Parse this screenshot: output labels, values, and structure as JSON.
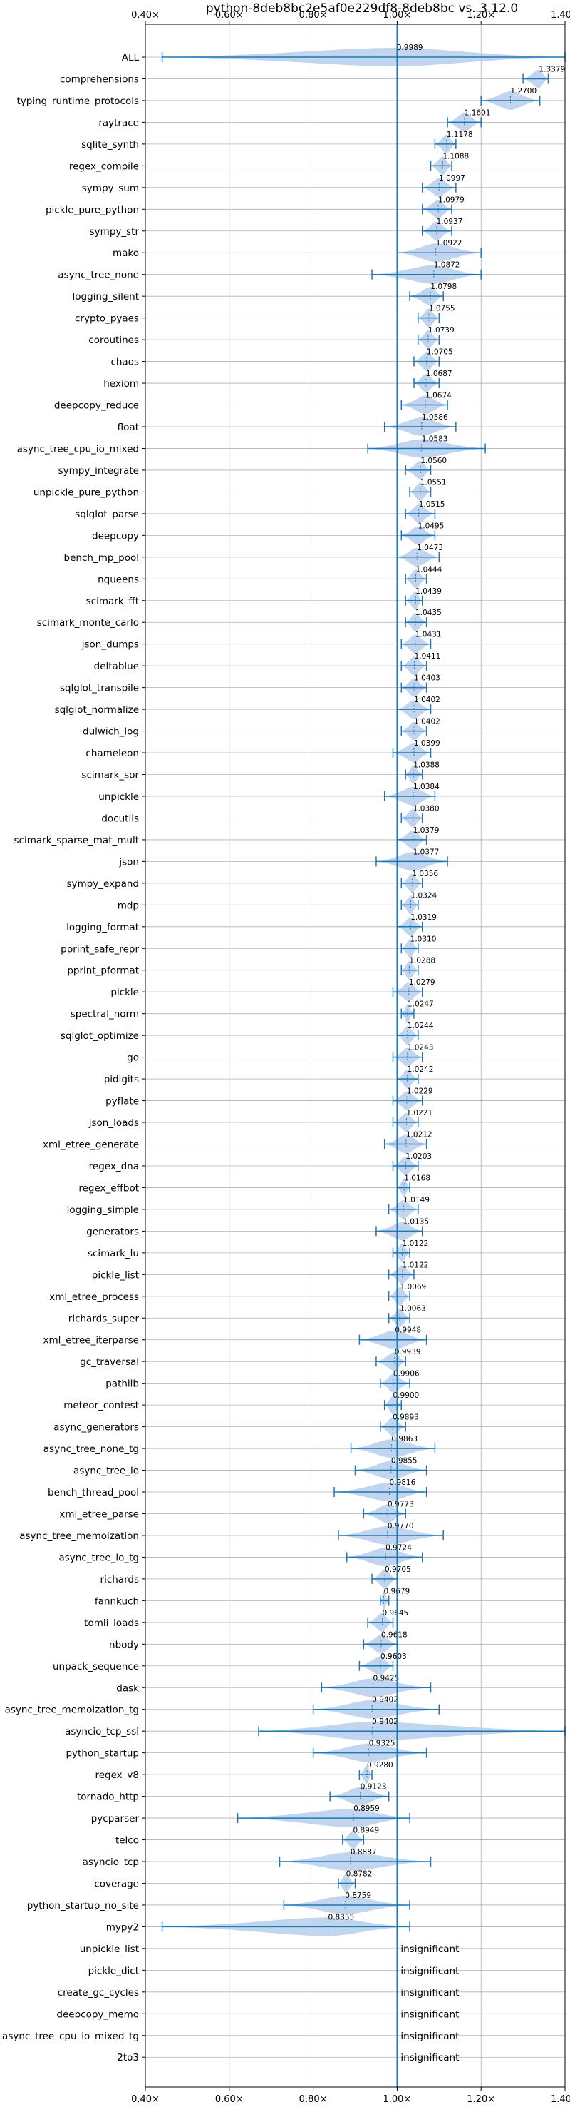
{
  "chart_data": {
    "type": "violin",
    "title": "python-8deb8bc2e5af0e229df8-8deb8bc vs. 3.12.0",
    "xlim": [
      0.4,
      1.4
    ],
    "xticks": [
      0.4,
      0.6,
      0.8,
      1.0,
      1.2,
      1.4
    ],
    "xtick_labels": [
      "0.40×",
      "0.60×",
      "0.80×",
      "1.00×",
      "1.20×",
      "1.40×"
    ],
    "reference_line": 1.0,
    "grid": true,
    "series_color": "#1f77b4",
    "violin_color": "#aec7e8",
    "insignificant_label": "insignificant",
    "benchmarks": [
      {
        "name": "ALL",
        "value": 0.9989,
        "label": "0.9989",
        "min": 0.44,
        "max": 1.4
      },
      {
        "name": "comprehensions",
        "value": 1.3379,
        "label": "1.3379",
        "min": 1.3,
        "max": 1.36
      },
      {
        "name": "typing_runtime_protocols",
        "value": 1.27,
        "label": "1.2700",
        "min": 1.2,
        "max": 1.34
      },
      {
        "name": "raytrace",
        "value": 1.1601,
        "label": "1.1601",
        "min": 1.12,
        "max": 1.2
      },
      {
        "name": "sqlite_synth",
        "value": 1.1178,
        "label": "1.1178",
        "min": 1.09,
        "max": 1.14
      },
      {
        "name": "regex_compile",
        "value": 1.1088,
        "label": "1.1088",
        "min": 1.08,
        "max": 1.13
      },
      {
        "name": "sympy_sum",
        "value": 1.0997,
        "label": "1.0997",
        "min": 1.06,
        "max": 1.14
      },
      {
        "name": "pickle_pure_python",
        "value": 1.0979,
        "label": "1.0979",
        "min": 1.06,
        "max": 1.13
      },
      {
        "name": "sympy_str",
        "value": 1.0937,
        "label": "1.0937",
        "min": 1.06,
        "max": 1.13
      },
      {
        "name": "mako",
        "value": 1.0922,
        "label": "1.0922",
        "min": 1.0,
        "max": 1.2
      },
      {
        "name": "async_tree_none",
        "value": 1.0872,
        "label": "1.0872",
        "min": 0.94,
        "max": 1.2
      },
      {
        "name": "logging_silent",
        "value": 1.0798,
        "label": "1.0798",
        "min": 1.03,
        "max": 1.11
      },
      {
        "name": "crypto_pyaes",
        "value": 1.0755,
        "label": "1.0755",
        "min": 1.05,
        "max": 1.1
      },
      {
        "name": "coroutines",
        "value": 1.0739,
        "label": "1.0739",
        "min": 1.05,
        "max": 1.1
      },
      {
        "name": "chaos",
        "value": 1.0705,
        "label": "1.0705",
        "min": 1.04,
        "max": 1.1
      },
      {
        "name": "hexiom",
        "value": 1.0687,
        "label": "1.0687",
        "min": 1.04,
        "max": 1.1
      },
      {
        "name": "deepcopy_reduce",
        "value": 1.0674,
        "label": "1.0674",
        "min": 1.01,
        "max": 1.12
      },
      {
        "name": "float",
        "value": 1.0586,
        "label": "1.0586",
        "min": 0.97,
        "max": 1.14
      },
      {
        "name": "async_tree_cpu_io_mixed",
        "value": 1.0583,
        "label": "1.0583",
        "min": 0.93,
        "max": 1.21
      },
      {
        "name": "sympy_integrate",
        "value": 1.056,
        "label": "1.0560",
        "min": 1.02,
        "max": 1.08
      },
      {
        "name": "unpickle_pure_python",
        "value": 1.0551,
        "label": "1.0551",
        "min": 1.03,
        "max": 1.08
      },
      {
        "name": "sqlglot_parse",
        "value": 1.0515,
        "label": "1.0515",
        "min": 1.02,
        "max": 1.09
      },
      {
        "name": "deepcopy",
        "value": 1.0495,
        "label": "1.0495",
        "min": 1.01,
        "max": 1.09
      },
      {
        "name": "bench_mp_pool",
        "value": 1.0473,
        "label": "1.0473",
        "min": 1.0,
        "max": 1.1
      },
      {
        "name": "nqueens",
        "value": 1.0444,
        "label": "1.0444",
        "min": 1.02,
        "max": 1.07
      },
      {
        "name": "scimark_fft",
        "value": 1.0439,
        "label": "1.0439",
        "min": 1.02,
        "max": 1.06
      },
      {
        "name": "scimark_monte_carlo",
        "value": 1.0435,
        "label": "1.0435",
        "min": 1.02,
        "max": 1.07
      },
      {
        "name": "json_dumps",
        "value": 1.0431,
        "label": "1.0431",
        "min": 1.01,
        "max": 1.08
      },
      {
        "name": "deltablue",
        "value": 1.0411,
        "label": "1.0411",
        "min": 1.01,
        "max": 1.07
      },
      {
        "name": "sqlglot_transpile",
        "value": 1.0403,
        "label": "1.0403",
        "min": 1.01,
        "max": 1.07
      },
      {
        "name": "sqlglot_normalize",
        "value": 1.0402,
        "label": "1.0402",
        "min": 1.0,
        "max": 1.08
      },
      {
        "name": "dulwich_log",
        "value": 1.0402,
        "label": "1.0402",
        "min": 1.01,
        "max": 1.07
      },
      {
        "name": "chameleon",
        "value": 1.0399,
        "label": "1.0399",
        "min": 0.99,
        "max": 1.08
      },
      {
        "name": "scimark_sor",
        "value": 1.0388,
        "label": "1.0388",
        "min": 1.02,
        "max": 1.06
      },
      {
        "name": "unpickle",
        "value": 1.0384,
        "label": "1.0384",
        "min": 0.97,
        "max": 1.09
      },
      {
        "name": "docutils",
        "value": 1.038,
        "label": "1.0380",
        "min": 1.01,
        "max": 1.06
      },
      {
        "name": "scimark_sparse_mat_mult",
        "value": 1.0379,
        "label": "1.0379",
        "min": 1.0,
        "max": 1.07
      },
      {
        "name": "json",
        "value": 1.0377,
        "label": "1.0377",
        "min": 0.95,
        "max": 1.12
      },
      {
        "name": "sympy_expand",
        "value": 1.0356,
        "label": "1.0356",
        "min": 1.01,
        "max": 1.06
      },
      {
        "name": "mdp",
        "value": 1.0324,
        "label": "1.0324",
        "min": 1.01,
        "max": 1.05
      },
      {
        "name": "logging_format",
        "value": 1.0319,
        "label": "1.0319",
        "min": 1.0,
        "max": 1.06
      },
      {
        "name": "pprint_safe_repr",
        "value": 1.031,
        "label": "1.0310",
        "min": 1.01,
        "max": 1.05
      },
      {
        "name": "pprint_pformat",
        "value": 1.0288,
        "label": "1.0288",
        "min": 1.01,
        "max": 1.05
      },
      {
        "name": "pickle",
        "value": 1.0279,
        "label": "1.0279",
        "min": 0.99,
        "max": 1.06
      },
      {
        "name": "spectral_norm",
        "value": 1.0247,
        "label": "1.0247",
        "min": 1.01,
        "max": 1.04
      },
      {
        "name": "sqlglot_optimize",
        "value": 1.0244,
        "label": "1.0244",
        "min": 1.0,
        "max": 1.05
      },
      {
        "name": "go",
        "value": 1.0243,
        "label": "1.0243",
        "min": 0.99,
        "max": 1.06
      },
      {
        "name": "pidigits",
        "value": 1.0242,
        "label": "1.0242",
        "min": 1.0,
        "max": 1.05
      },
      {
        "name": "pyflate",
        "value": 1.0229,
        "label": "1.0229",
        "min": 0.99,
        "max": 1.06
      },
      {
        "name": "json_loads",
        "value": 1.0221,
        "label": "1.0221",
        "min": 0.99,
        "max": 1.05
      },
      {
        "name": "xml_etree_generate",
        "value": 1.0212,
        "label": "1.0212",
        "min": 0.97,
        "max": 1.07
      },
      {
        "name": "regex_dna",
        "value": 1.0203,
        "label": "1.0203",
        "min": 0.99,
        "max": 1.05
      },
      {
        "name": "regex_effbot",
        "value": 1.0168,
        "label": "1.0168",
        "min": 1.0,
        "max": 1.03
      },
      {
        "name": "logging_simple",
        "value": 1.0149,
        "label": "1.0149",
        "min": 0.98,
        "max": 1.05
      },
      {
        "name": "generators",
        "value": 1.0135,
        "label": "1.0135",
        "min": 0.95,
        "max": 1.06
      },
      {
        "name": "scimark_lu",
        "value": 1.0122,
        "label": "1.0122",
        "min": 0.99,
        "max": 1.03
      },
      {
        "name": "pickle_list",
        "value": 1.0122,
        "label": "1.0122",
        "min": 0.98,
        "max": 1.04
      },
      {
        "name": "xml_etree_process",
        "value": 1.0069,
        "label": "1.0069",
        "min": 0.98,
        "max": 1.03
      },
      {
        "name": "richards_super",
        "value": 1.0063,
        "label": "1.0063",
        "min": 0.98,
        "max": 1.03
      },
      {
        "name": "xml_etree_iterparse",
        "value": 0.9948,
        "label": "0.9948",
        "min": 0.91,
        "max": 1.07
      },
      {
        "name": "gc_traversal",
        "value": 0.9939,
        "label": "0.9939",
        "min": 0.95,
        "max": 1.02
      },
      {
        "name": "pathlib",
        "value": 0.9906,
        "label": "0.9906",
        "min": 0.96,
        "max": 1.03
      },
      {
        "name": "meteor_contest",
        "value": 0.99,
        "label": "0.9900",
        "min": 0.97,
        "max": 1.01
      },
      {
        "name": "async_generators",
        "value": 0.9893,
        "label": "0.9893",
        "min": 0.96,
        "max": 1.02
      },
      {
        "name": "async_tree_none_tg",
        "value": 0.9863,
        "label": "0.9863",
        "min": 0.89,
        "max": 1.09
      },
      {
        "name": "async_tree_io",
        "value": 0.9855,
        "label": "0.9855",
        "min": 0.9,
        "max": 1.07
      },
      {
        "name": "bench_thread_pool",
        "value": 0.9816,
        "label": "0.9816",
        "min": 0.85,
        "max": 1.07
      },
      {
        "name": "xml_etree_parse",
        "value": 0.9773,
        "label": "0.9773",
        "min": 0.92,
        "max": 1.02
      },
      {
        "name": "async_tree_memoization",
        "value": 0.977,
        "label": "0.9770",
        "min": 0.86,
        "max": 1.11
      },
      {
        "name": "async_tree_io_tg",
        "value": 0.9724,
        "label": "0.9724",
        "min": 0.88,
        "max": 1.06
      },
      {
        "name": "richards",
        "value": 0.9705,
        "label": "0.9705",
        "min": 0.94,
        "max": 1.0
      },
      {
        "name": "fannkuch",
        "value": 0.9679,
        "label": "0.9679",
        "min": 0.96,
        "max": 0.98
      },
      {
        "name": "tomli_loads",
        "value": 0.9645,
        "label": "0.9645",
        "min": 0.93,
        "max": 0.99
      },
      {
        "name": "nbody",
        "value": 0.9618,
        "label": "0.9618",
        "min": 0.92,
        "max": 1.0
      },
      {
        "name": "unpack_sequence",
        "value": 0.9603,
        "label": "0.9603",
        "min": 0.91,
        "max": 0.99
      },
      {
        "name": "dask",
        "value": 0.9425,
        "label": "0.9425",
        "min": 0.82,
        "max": 1.08
      },
      {
        "name": "async_tree_memoization_tg",
        "value": 0.9402,
        "label": "0.9402",
        "min": 0.8,
        "max": 1.1
      },
      {
        "name": "asyncio_tcp_ssl",
        "value": 0.9402,
        "label": "0.9402",
        "min": 0.67,
        "max": 1.4
      },
      {
        "name": "python_startup",
        "value": 0.9325,
        "label": "0.9325",
        "min": 0.8,
        "max": 1.07
      },
      {
        "name": "regex_v8",
        "value": 0.928,
        "label": "0.9280",
        "min": 0.91,
        "max": 0.94
      },
      {
        "name": "tornado_http",
        "value": 0.9123,
        "label": "0.9123",
        "min": 0.84,
        "max": 0.98
      },
      {
        "name": "pycparser",
        "value": 0.8959,
        "label": "0.8959",
        "min": 0.62,
        "max": 1.03
      },
      {
        "name": "telco",
        "value": 0.8949,
        "label": "0.8949",
        "min": 0.87,
        "max": 0.92
      },
      {
        "name": "asyncio_tcp",
        "value": 0.8887,
        "label": "0.8887",
        "min": 0.72,
        "max": 1.08
      },
      {
        "name": "coverage",
        "value": 0.8782,
        "label": "0.8782",
        "min": 0.86,
        "max": 0.9
      },
      {
        "name": "python_startup_no_site",
        "value": 0.8759,
        "label": "0.8759",
        "min": 0.73,
        "max": 1.03
      },
      {
        "name": "mypy2",
        "value": 0.8355,
        "label": "0.8355",
        "min": 0.44,
        "max": 1.03
      },
      {
        "name": "unpickle_list",
        "insignificant": true
      },
      {
        "name": "pickle_dict",
        "insignificant": true
      },
      {
        "name": "create_gc_cycles",
        "insignificant": true
      },
      {
        "name": "deepcopy_memo",
        "insignificant": true
      },
      {
        "name": "async_tree_cpu_io_mixed_tg",
        "insignificant": true
      },
      {
        "name": "2to3",
        "insignificant": true
      }
    ]
  }
}
